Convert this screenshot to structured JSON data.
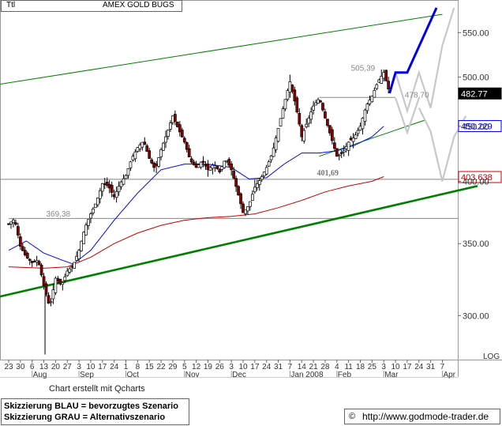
{
  "header": {
    "symbol": "Ttl",
    "title": "AMEX GOLD BUGS"
  },
  "footer": {
    "credit": "Chart erstellt mit Qcharts",
    "legend_blue": "Skizzierung BLAU = bevorzugtes Szenario",
    "legend_grey": "Skizzierung GRAU = Alternativszenario",
    "url": "http://www.godmode-trader.de",
    "scale_mode": "LOG"
  },
  "colors": {
    "price_candles": "#000000",
    "sma_blue": "#0000ff",
    "sma_red": "#cc0000",
    "trendline_green": "#008000",
    "scenario_blue": "#0000ee",
    "scenario_grey": "#c8c8c8",
    "badge_last": "#000000",
    "badge_blue": "#0000ff",
    "badge_red": "#cc0000"
  },
  "chart_data": {
    "type": "line",
    "subtype": "candlestick",
    "title": "AMEX GOLD BUGS",
    "y_scale": "log",
    "ylim": [
      273,
      575
    ],
    "y_ticks": [
      300,
      350,
      400,
      450,
      500,
      550
    ],
    "y_tick_labels": [
      "300.00",
      "350.00",
      "400.00",
      "450.00",
      "500.00",
      "550.00"
    ],
    "x_tick_labels": [
      "23",
      "30",
      "6",
      "13",
      "20",
      "27",
      "3",
      "10",
      "17",
      "24",
      "1",
      "8",
      "15",
      "22",
      "29",
      "5",
      "12",
      "19",
      "26",
      "3",
      "10",
      "17",
      "24",
      "31",
      "7",
      "14",
      "21",
      "28",
      "4",
      "11",
      "18",
      "25",
      "3",
      "10",
      "17",
      "24",
      "31",
      "7"
    ],
    "x_months": [
      {
        "label": "Aug",
        "tick_index": 2
      },
      {
        "label": "Sep",
        "tick_index": 6
      },
      {
        "label": "Oct",
        "tick_index": 10
      },
      {
        "label": "Nov",
        "tick_index": 15
      },
      {
        "label": "Dec",
        "tick_index": 19
      },
      {
        "label": "Jan 2008",
        "tick_index": 24
      },
      {
        "label": "Feb",
        "tick_index": 28
      },
      {
        "label": "Mar",
        "tick_index": 32
      },
      {
        "label": "Apr",
        "tick_index": 37
      }
    ],
    "price_path": [
      [
        0,
        365
      ],
      [
        0.5,
        369
      ],
      [
        1,
        348
      ],
      [
        1.5,
        340
      ],
      [
        2,
        336
      ],
      [
        2.5,
        338
      ],
      [
        3,
        320
      ],
      [
        3.5,
        305
      ],
      [
        4,
        325
      ],
      [
        4.5,
        320
      ],
      [
        5,
        330
      ],
      [
        5.5,
        334
      ],
      [
        6,
        345
      ],
      [
        6.5,
        362
      ],
      [
        7,
        373
      ],
      [
        7.5,
        383
      ],
      [
        8,
        398
      ],
      [
        8.5,
        396
      ],
      [
        9,
        387
      ],
      [
        9.5,
        398
      ],
      [
        10,
        405
      ],
      [
        10.5,
        420
      ],
      [
        11,
        430
      ],
      [
        11.5,
        436
      ],
      [
        12,
        420
      ],
      [
        12.5,
        410
      ],
      [
        13,
        428
      ],
      [
        13.5,
        443
      ],
      [
        14,
        460
      ],
      [
        14.5,
        447
      ],
      [
        15,
        435
      ],
      [
        15.5,
        418
      ],
      [
        16,
        412
      ],
      [
        16.5,
        418
      ],
      [
        17,
        410
      ],
      [
        17.5,
        415
      ],
      [
        18,
        408
      ],
      [
        18.5,
        420
      ],
      [
        19,
        410
      ],
      [
        19.5,
        392
      ],
      [
        20,
        374
      ],
      [
        20.5,
        380
      ],
      [
        21,
        395
      ],
      [
        21.5,
        402
      ],
      [
        22,
        412
      ],
      [
        22.5,
        425
      ],
      [
        23,
        448
      ],
      [
        23.5,
        472
      ],
      [
        24,
        495
      ],
      [
        24.5,
        470
      ],
      [
        25,
        440
      ],
      [
        25.5,
        455
      ],
      [
        26,
        470
      ],
      [
        26.5,
        478
      ],
      [
        27,
        458
      ],
      [
        27.5,
        440
      ],
      [
        28,
        422
      ],
      [
        28.5,
        425
      ],
      [
        29,
        435
      ],
      [
        29.5,
        440
      ],
      [
        30,
        450
      ],
      [
        30.5,
        470
      ],
      [
        31,
        480
      ],
      [
        31.5,
        495
      ],
      [
        32,
        505
      ],
      [
        32.5,
        483
      ]
    ],
    "series": [
      {
        "name": "",
        "color": "blue",
        "role": "moving average",
        "points": [
          [
            0,
            345
          ],
          [
            1.5,
            352
          ],
          [
            3,
            343
          ],
          [
            4.5,
            338
          ],
          [
            5.5,
            335
          ],
          [
            7,
            345
          ],
          [
            9,
            368
          ],
          [
            11,
            390
          ],
          [
            13,
            410
          ],
          [
            15,
            415
          ],
          [
            17,
            415
          ],
          [
            19,
            412
          ],
          [
            20.5,
            402
          ],
          [
            22,
            403
          ],
          [
            23.5,
            415
          ],
          [
            25,
            425
          ],
          [
            26.5,
            425
          ],
          [
            28,
            427
          ],
          [
            29.5,
            432
          ],
          [
            31,
            440
          ],
          [
            32,
            450
          ]
        ]
      },
      {
        "name": "",
        "color": "red",
        "role": "moving average",
        "points": [
          [
            0,
            333
          ],
          [
            3,
            332
          ],
          [
            5,
            333
          ],
          [
            7,
            340
          ],
          [
            9,
            350
          ],
          [
            11,
            358
          ],
          [
            13,
            364
          ],
          [
            15,
            368
          ],
          [
            17,
            370
          ],
          [
            19,
            371
          ],
          [
            21,
            373
          ],
          [
            23,
            378
          ],
          [
            25,
            384
          ],
          [
            27,
            391
          ],
          [
            29,
            396
          ],
          [
            31,
            400
          ],
          [
            32,
            404
          ]
        ]
      }
    ],
    "trendlines": [
      {
        "color": "green",
        "style": "thick",
        "points": [
          [
            -1,
            312
          ],
          [
            40,
            396
          ]
        ]
      },
      {
        "color": "green",
        "style": "thin",
        "points": [
          [
            -1,
            492
          ],
          [
            37,
            572
          ]
        ]
      },
      {
        "color": "green",
        "style": "thin",
        "points": [
          [
            26.5,
            422
          ],
          [
            35.5,
            456
          ]
        ]
      }
    ],
    "horizontal_lines": [
      {
        "value": 369.38,
        "label": "369,38",
        "from": 0,
        "to": 40
      },
      {
        "value": 401.69,
        "label": "",
        "from": -1,
        "to": 40
      },
      {
        "value": 478.7,
        "label": "",
        "from": 26.5,
        "to": 33
      }
    ],
    "annotations": [
      {
        "text": "369,38",
        "x": 3.2,
        "y": 371
      },
      {
        "text": "401,69",
        "x": 26.3,
        "y": 405
      },
      {
        "text": "478,70",
        "x": 33.8,
        "y": 478.7
      },
      {
        "text": "505,39",
        "x": 29.2,
        "y": 507
      }
    ],
    "scenario_blue": [
      [
        32.5,
        483
      ],
      [
        33,
        505
      ],
      [
        34,
        505
      ],
      [
        36.5,
        580
      ]
    ],
    "scenario_grey_path1": [
      [
        33,
        505
      ],
      [
        34,
        465
      ],
      [
        35,
        505
      ],
      [
        36,
        468
      ],
      [
        37,
        535
      ],
      [
        38,
        580
      ]
    ],
    "scenario_grey_path2": [
      [
        33,
        478
      ],
      [
        34,
        444
      ],
      [
        35,
        478
      ]
    ],
    "scenario_grey_path3": [
      [
        35,
        468
      ],
      [
        36,
        445
      ],
      [
        37,
        400
      ],
      [
        38,
        440
      ],
      [
        39,
        460
      ]
    ],
    "value_badges": [
      {
        "label": "482.77",
        "value": 482.77,
        "color": "black"
      },
      {
        "label": "450.229",
        "value": 450.229,
        "color": "blue"
      },
      {
        "label": "403.638",
        "value": 403.638,
        "color": "red"
      }
    ]
  }
}
